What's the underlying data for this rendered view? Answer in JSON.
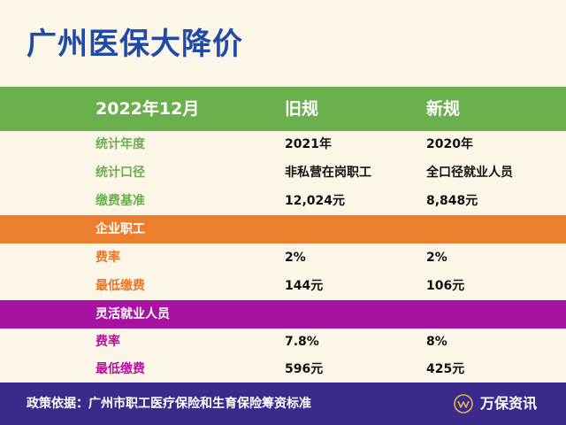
{
  "title": "广州医保大降价",
  "header": {
    "period": "2022年12月",
    "old": "旧规",
    "new": "新规"
  },
  "general_rows": [
    {
      "label": "统计年度",
      "old": "2021年",
      "new": "2020年"
    },
    {
      "label": "统计口径",
      "old": "非私营在岗职工",
      "new": "全口径就业人员"
    },
    {
      "label": "缴费基准",
      "old": "12,024元",
      "new": "8,848元"
    }
  ],
  "section_enterprise": {
    "title": "企业职工",
    "rows": [
      {
        "label": "费率",
        "old": "2%",
        "new": "2%"
      },
      {
        "label": "最低缴费",
        "old": "144元",
        "new": "106元"
      }
    ]
  },
  "section_flexible": {
    "title": "灵活就业人员",
    "rows": [
      {
        "label": "费率",
        "old": "7.8%",
        "new": "8%"
      },
      {
        "label": "最低缴费",
        "old": "596元",
        "new": "425元"
      }
    ]
  },
  "footer": {
    "note": "政策依据：广州市职工医疗保险和生育保险筹资标准",
    "brand": "万保资讯",
    "logo_icon": "brand-logo-icon"
  },
  "colors": {
    "title": "#1f4aa8",
    "green": "#6ab04c",
    "orange": "#ec7f2e",
    "purple": "#a712a0",
    "footer": "#3a2a8c",
    "background": "#fbf6e8"
  }
}
